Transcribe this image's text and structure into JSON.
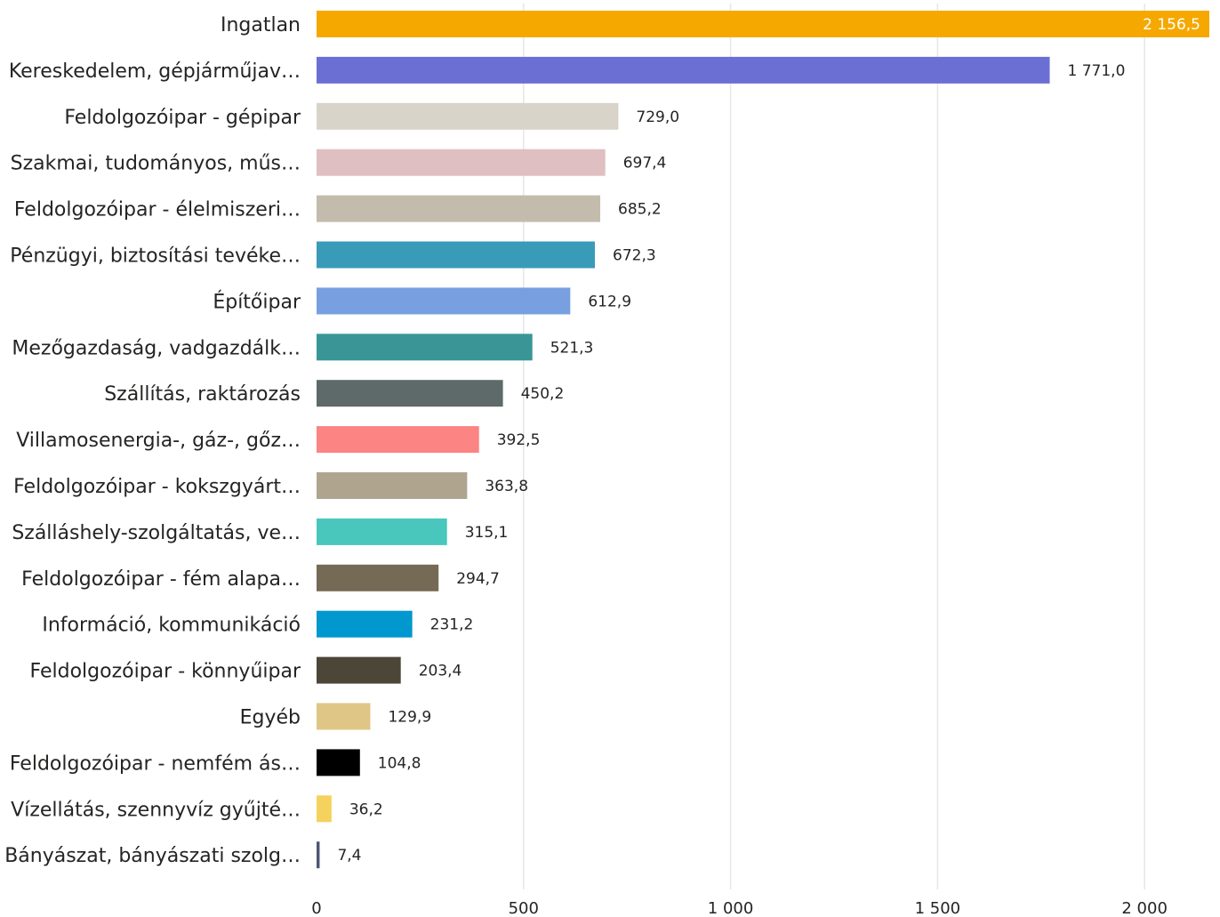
{
  "chart_data": {
    "type": "bar",
    "orientation": "horizontal",
    "categories": [
      "Ingatlan",
      "Kereskedelem, gépjárműjav…",
      "Feldolgozóipar - gépipar",
      "Szakmai, tudományos, műs…",
      "Feldolgozóipar - élelmiszeri…",
      "Pénzügyi, biztosítási tevéke…",
      "Építőipar",
      "Mezőgazdaság, vadgazdálk…",
      "Szállítás, raktározás",
      "Villamosenergia-, gáz-, gőz…",
      "Feldolgozóipar - kokszgyárt…",
      "Szálláshely-szolgáltatás, ve…",
      "Feldolgozóipar - fém alapa…",
      "Információ, kommunikáció",
      "Feldolgozóipar - könnyűipar",
      "Egyéb",
      "Feldolgozóipar - nemfém ás…",
      "Vízellátás, szennyvíz gyűjté…",
      "Bányászat, bányászati szolg…"
    ],
    "values": [
      2156.5,
      1771.0,
      729.0,
      697.4,
      685.2,
      672.3,
      612.9,
      521.3,
      450.2,
      392.5,
      363.8,
      315.1,
      294.7,
      231.2,
      203.4,
      129.9,
      104.8,
      36.2,
      7.4
    ],
    "value_labels": [
      "2 156,5",
      "1 771,0",
      "729,0",
      "697,4",
      "685,2",
      "672,3",
      "612,9",
      "521,3",
      "450,2",
      "392,5",
      "363,8",
      "315,1",
      "294,7",
      "231,2",
      "203,4",
      "129,9",
      "104,8",
      "36,2",
      "7,4"
    ],
    "colors": [
      "#F5A800",
      "#6B6FD4",
      "#D9D4CA",
      "#DFBFC1",
      "#C3BCAD",
      "#3A9BB8",
      "#78A0E0",
      "#3A9696",
      "#5E6A6A",
      "#FC8483",
      "#AFA58F",
      "#4AC7BC",
      "#756A55",
      "#0098CE",
      "#4B4638",
      "#E0C686",
      "#000000",
      "#F5D25D",
      "#4E5674"
    ],
    "x_ticks": [
      0,
      500,
      1000,
      1500,
      2000
    ],
    "x_tick_labels": [
      "0",
      "500",
      "1 000",
      "1 500",
      "2 000"
    ],
    "xlim": [
      0,
      2156.5
    ],
    "grid": true,
    "legend": "none",
    "title": "",
    "xlabel": "",
    "ylabel": ""
  }
}
